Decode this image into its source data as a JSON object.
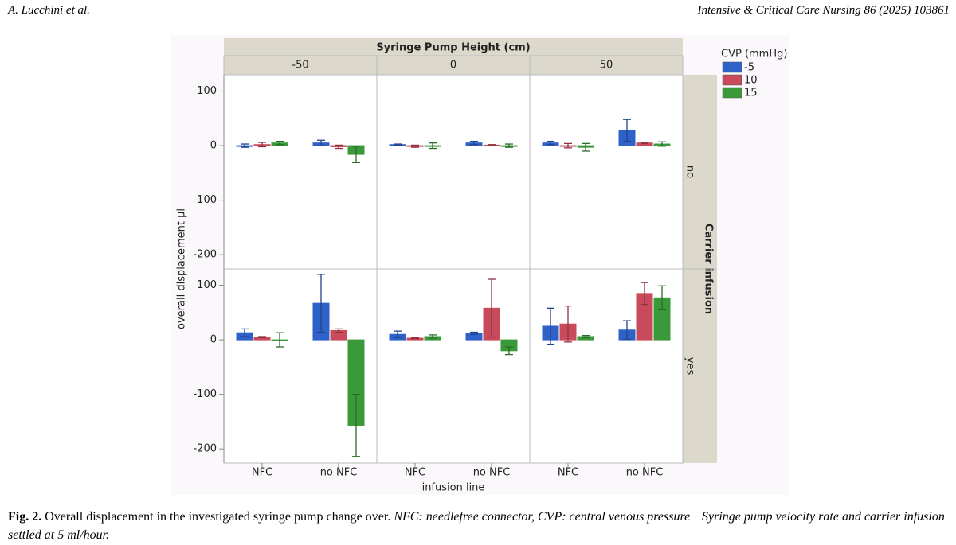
{
  "header": {
    "authors": "A. Lucchini et al.",
    "journal": "Intensive & Critical Care Nursing 86 (2025) 103861"
  },
  "chart_data": {
    "type": "bar",
    "title": "Syringe Pump Height (cm)",
    "column_facets": [
      "-50",
      "0",
      "50"
    ],
    "row_facet_title": "Carrier infusion",
    "row_facets": [
      "no",
      "yes"
    ],
    "x_label": "infusion line",
    "y_label": "overall displacement µl",
    "legend_title": "CVP (mmHg)",
    "categories": [
      "NFC",
      "no NFC"
    ],
    "series": [
      {
        "name": "-5",
        "color": "#2f62c8"
      },
      {
        "name": "10",
        "color": "#c94a5a"
      },
      {
        "name": "15",
        "color": "#3a9a3a"
      }
    ],
    "ylim": [
      -226,
      130
    ],
    "yticks": [
      -200,
      -100,
      0,
      100
    ],
    "panels": [
      [
        {
          "values": [
            [
              0,
              5
            ],
            [
              2,
              -2
            ],
            [
              5,
              -16
            ]
          ],
          "errors": [
            [
              3,
              5
            ],
            [
              4,
              3
            ],
            [
              3,
              15
            ]
          ]
        },
        {
          "values": [
            [
              2,
              5
            ],
            [
              -1,
              1
            ],
            [
              0,
              0
            ]
          ],
          "errors": [
            [
              1,
              3
            ],
            [
              2,
              1
            ],
            [
              5,
              3
            ]
          ]
        },
        {
          "values": [
            [
              5,
              28
            ],
            [
              0,
              5
            ],
            [
              -3,
              3
            ]
          ],
          "errors": [
            [
              3,
              20
            ],
            [
              4,
              1
            ],
            [
              7,
              4
            ]
          ]
        }
      ],
      [
        {
          "values": [
            [
              13,
              67
            ],
            [
              5,
              17
            ],
            [
              0,
              -157
            ]
          ],
          "errors": [
            [
              7,
              53
            ],
            [
              1,
              3
            ],
            [
              13,
              57
            ]
          ]
        },
        {
          "values": [
            [
              10,
              12
            ],
            [
              3,
              58
            ],
            [
              6,
              -20
            ]
          ],
          "errors": [
            [
              6,
              2
            ],
            [
              1,
              53
            ],
            [
              3,
              7
            ]
          ]
        },
        {
          "values": [
            [
              25,
              18
            ],
            [
              29,
              85
            ],
            [
              6,
              77
            ]
          ],
          "errors": [
            [
              33,
              17
            ],
            [
              33,
              20
            ],
            [
              2,
              22
            ]
          ]
        }
      ]
    ]
  },
  "caption": {
    "label": "Fig. 2.",
    "text": "Overall displacement in the investigated syringe pump change over.",
    "italic": "NFC: needlefree connector, CVP: central venous pressure −Syringe pump velocity rate and carrier infusion settled at 5 ml/hour."
  }
}
